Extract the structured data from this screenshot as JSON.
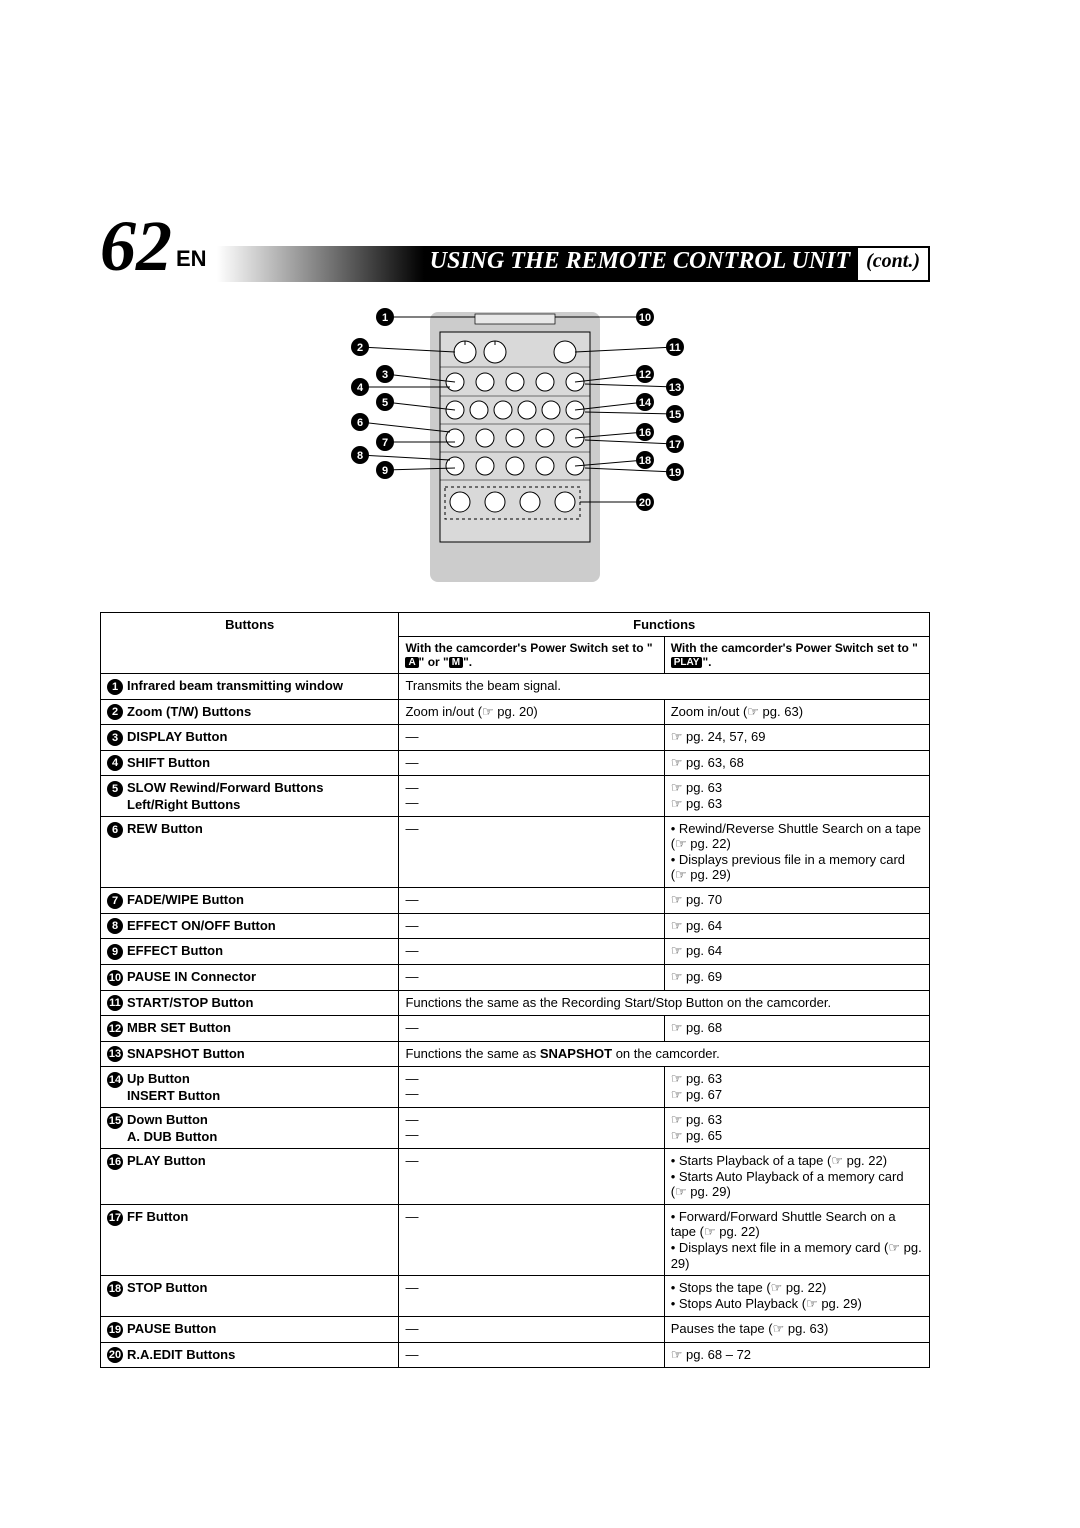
{
  "header": {
    "page_number": "62",
    "lang": "EN",
    "title": "USING THE REMOTE CONTROL UNIT",
    "title_cont": "(cont.)"
  },
  "diagram": {
    "left_labels": [
      "1",
      "2",
      "3",
      "4",
      "5",
      "6",
      "7",
      "8",
      "9"
    ],
    "right_labels": [
      "10",
      "11",
      "12",
      "13",
      "14",
      "15",
      "16",
      "17",
      "18",
      "19",
      "20"
    ],
    "remote_bg": "#cccccc",
    "button_fill": "#ffffff",
    "stroke": "#000000"
  },
  "table": {
    "header_buttons": "Buttons",
    "header_functions": "Functions",
    "header_col_a_prefix": "With the camcorder's Power Switch set to \"",
    "header_col_a_icons": [
      "A",
      "M"
    ],
    "header_col_a_mid": "\" or \"",
    "header_col_a_suffix": "\".",
    "header_col_b_prefix": "With the camcorder's Power Switch set to \"",
    "header_col_b_icon": "PLAY",
    "header_col_b_suffix": "\".",
    "rows": [
      {
        "num": "1",
        "name": "Infrared beam transmitting window",
        "a": "Transmits the beam signal.",
        "a_span": true
      },
      {
        "num": "2",
        "name": "Zoom (T/W) Buttons",
        "a": "Zoom in/out (☞ pg. 20)",
        "b": "Zoom in/out (☞ pg. 63)"
      },
      {
        "num": "3",
        "name": "DISPLAY Button",
        "a": "—",
        "a_center": true,
        "b": "☞ pg. 24, 57, 69"
      },
      {
        "num": "4",
        "name": "SHIFT Button",
        "a": "—",
        "a_center": true,
        "b": "☞ pg. 63, 68"
      },
      {
        "num": "5",
        "name": "SLOW Rewind/Forward Buttons",
        "name2": "Left/Right Buttons",
        "a": "—\n—",
        "a_center": true,
        "b": "☞ pg. 63\n☞ pg. 63"
      },
      {
        "num": "6",
        "name": "REW Button",
        "a": "—",
        "a_center": true,
        "b": "• Rewind/Reverse Shuttle Search on a tape (☞ pg. 22)\n• Displays previous file in a memory card (☞ pg. 29)"
      },
      {
        "num": "7",
        "name": "FADE/WIPE Button",
        "a": "—",
        "a_center": true,
        "b": "☞ pg. 70"
      },
      {
        "num": "8",
        "name": "EFFECT ON/OFF Button",
        "a": "—",
        "a_center": true,
        "b": "☞ pg. 64"
      },
      {
        "num": "9",
        "name": "EFFECT Button",
        "a": "—",
        "a_center": true,
        "b": "☞ pg. 64"
      },
      {
        "num": "10",
        "name": "PAUSE IN Connector",
        "a": "—",
        "a_center": true,
        "b": "☞ pg. 69"
      },
      {
        "num": "11",
        "name": "START/STOP Button",
        "a": "Functions the same as the Recording Start/Stop Button on the camcorder.",
        "a_span": true
      },
      {
        "num": "12",
        "name": "MBR SET Button",
        "a": "—",
        "a_center": true,
        "b": "☞ pg. 68"
      },
      {
        "num": "13",
        "name": "SNAPSHOT Button",
        "a_html": true,
        "a": "Functions the same as <b>SNAPSHOT</b> on the camcorder.",
        "a_span": true
      },
      {
        "num": "14",
        "name": "Up Button",
        "name2": "INSERT Button",
        "a": "—\n—",
        "a_center": true,
        "b": "☞ pg. 63\n☞ pg. 67"
      },
      {
        "num": "15",
        "name": "Down Button",
        "name2": "A. DUB Button",
        "a": "—\n—",
        "a_center": true,
        "b": "☞ pg. 63\n☞ pg. 65"
      },
      {
        "num": "16",
        "name": "PLAY Button",
        "a": "—",
        "a_center": true,
        "b": "• Starts Playback of a tape (☞ pg. 22)\n• Starts Auto Playback of a memory card (☞ pg. 29)"
      },
      {
        "num": "17",
        "name": "FF Button",
        "a": "—",
        "a_center": true,
        "b": "• Forward/Forward Shuttle Search on a tape (☞ pg. 22)\n• Displays next file in a memory card (☞ pg. 29)"
      },
      {
        "num": "18",
        "name": "STOP Button",
        "a": "—",
        "a_center": true,
        "b": "• Stops the tape (☞ pg. 22)\n• Stops Auto Playback (☞ pg. 29)"
      },
      {
        "num": "19",
        "name": "PAUSE Button",
        "a": "—",
        "a_center": true,
        "b": "Pauses the tape (☞ pg. 63)"
      },
      {
        "num": "20",
        "name": "R.A.EDIT Buttons",
        "a": "—",
        "a_center": true,
        "b": "☞ pg. 68 – 72"
      }
    ]
  }
}
